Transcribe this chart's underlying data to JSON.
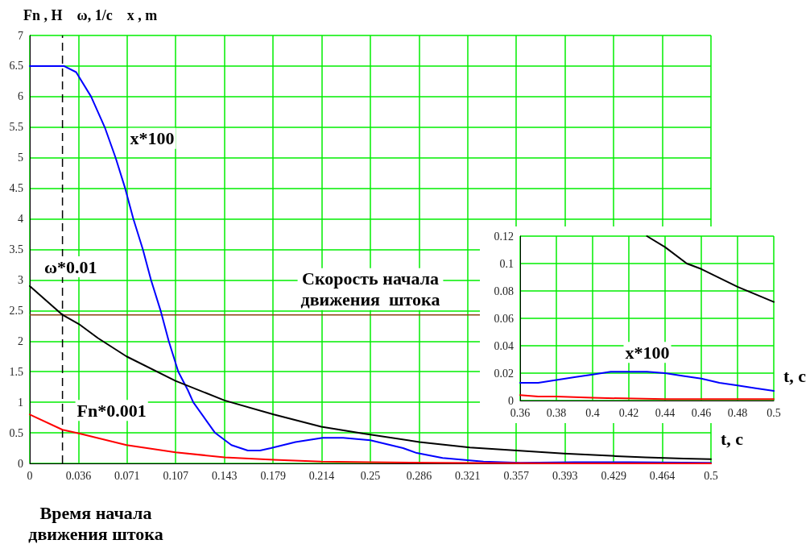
{
  "chart_data": [
    {
      "type": "line",
      "ylabel": "Fn , H    ω, 1/c    x , m",
      "xlabel": "t, c",
      "grid": true,
      "xlim": [
        0,
        0.5
      ],
      "xticks": [
        0,
        {
          "value": 0.0357,
          "label": "0.036"
        },
        {
          "value": 0.0714,
          "label": "0.071"
        },
        {
          "value": 0.1071,
          "label": "0.107"
        },
        {
          "value": 0.1429,
          "label": "0.143"
        },
        {
          "value": 0.1786,
          "label": "0.179"
        },
        {
          "value": 0.2143,
          "label": "0.214"
        },
        0.25,
        {
          "value": 0.2857,
          "label": "0.286"
        },
        {
          "value": 0.3214,
          "label": "0.321"
        },
        {
          "value": 0.3571,
          "label": "0.357"
        },
        {
          "value": 0.3929,
          "label": "0.393"
        },
        {
          "value": 0.4286,
          "label": "0.429"
        },
        {
          "value": 0.4643,
          "label": "0.464"
        },
        0.5
      ],
      "ylim": [
        0,
        7
      ],
      "yticks": [
        0,
        0.5,
        1,
        1.5,
        2,
        2.5,
        3,
        3.5,
        4,
        4.5,
        5,
        5.5,
        6,
        6.5,
        7
      ],
      "series": [
        {
          "color": "#0000ff",
          "x": [
            0,
            0.025,
            0.034,
            0.045,
            0.055,
            0.063,
            0.07,
            0.076,
            0.083,
            0.089,
            0.096,
            0.102,
            0.109,
            0.116,
            0.12,
            0.136,
            0.148,
            0.16,
            0.169,
            0.177,
            0.195,
            0.215,
            0.23,
            0.25,
            0.274,
            0.284,
            0.303,
            0.333,
            0.36,
            0.4,
            0.44,
            0.5
          ],
          "values": [
            6.5,
            6.5,
            6.4,
            6,
            5.5,
            5,
            4.5,
            4,
            3.5,
            3,
            2.5,
            2,
            1.5,
            1.2,
            1,
            0.5,
            0.3,
            0.21,
            0.21,
            0.25,
            0.35,
            0.42,
            0.42,
            0.38,
            0.25,
            0.17,
            0.09,
            0.03,
            0.01,
            0.02,
            0.02,
            0.01
          ]
        },
        {
          "color": "#000000",
          "x": [
            0,
            0.024,
            0.036,
            0.05,
            0.071,
            0.107,
            0.143,
            0.179,
            0.214,
            0.244,
            0.286,
            0.323,
            0.392,
            0.43,
            0.452,
            0.48,
            0.5
          ],
          "values": [
            2.9,
            2.43,
            2.28,
            2.05,
            1.75,
            1.35,
            1.03,
            0.8,
            0.6,
            0.49,
            0.35,
            0.26,
            0.16,
            0.12,
            0.1,
            0.08,
            0.07
          ]
        },
        {
          "color": "#ff0000",
          "x": [
            0,
            0.024,
            0.036,
            0.071,
            0.107,
            0.143,
            0.179,
            0.214,
            0.25,
            0.3,
            0.4,
            0.5
          ],
          "values": [
            0.8,
            0.55,
            0.49,
            0.3,
            0.18,
            0.1,
            0.06,
            0.03,
            0.02,
            0.01,
            0,
            0
          ]
        }
      ],
      "ref_lines": [
        {
          "axis": "y",
          "value": 2.43,
          "label": "Скорость начала\nдвижения  штока",
          "color": "#8b4513"
        },
        {
          "axis": "x",
          "value": 0.024,
          "label": "Время начала\nдвижения штока",
          "color": "#000000",
          "line_style": "dashed"
        }
      ],
      "annotations": [
        {
          "text": "x*100",
          "x": 0.063,
          "y": 5
        },
        {
          "text": "ω*0.01",
          "x": 0,
          "y": 2.9
        },
        {
          "text": "Fn*0.001",
          "x": 0.024,
          "y": 0.55
        }
      ]
    },
    {
      "type": "line",
      "xlabel": "t, c",
      "grid": true,
      "xlim": [
        0.36,
        0.5
      ],
      "xticks": [
        0.36,
        0.38,
        0.4,
        0.42,
        0.44,
        0.46,
        0.48,
        0.5
      ],
      "ylim": [
        0,
        0.12
      ],
      "yticks": [
        0,
        0.02,
        0.04,
        0.06,
        0.08,
        0.1,
        0.12
      ],
      "series": [
        {
          "color": "#000000",
          "x": [
            0.43,
            0.44,
            0.452,
            0.46,
            0.48,
            0.5
          ],
          "values": [
            0.12,
            0.112,
            0.1,
            0.096,
            0.083,
            0.072
          ]
        },
        {
          "color": "#0000ff",
          "x": [
            0.36,
            0.37,
            0.38,
            0.39,
            0.4,
            0.41,
            0.42,
            0.43,
            0.44,
            0.45,
            0.46,
            0.47,
            0.48,
            0.49,
            0.5
          ],
          "values": [
            0.013,
            0.013,
            0.015,
            0.017,
            0.019,
            0.021,
            0.021,
            0.021,
            0.02,
            0.018,
            0.016,
            0.013,
            0.011,
            0.009,
            0.007
          ]
        },
        {
          "color": "#ff0000",
          "x": [
            0.36,
            0.37,
            0.38,
            0.4,
            0.44,
            0.5
          ],
          "values": [
            0.004,
            0.003,
            0.003,
            0.002,
            0.001,
            0.001
          ]
        }
      ],
      "annotations": [
        {
          "text": "x*100",
          "x": 0.41,
          "y": 0.021
        }
      ]
    }
  ]
}
